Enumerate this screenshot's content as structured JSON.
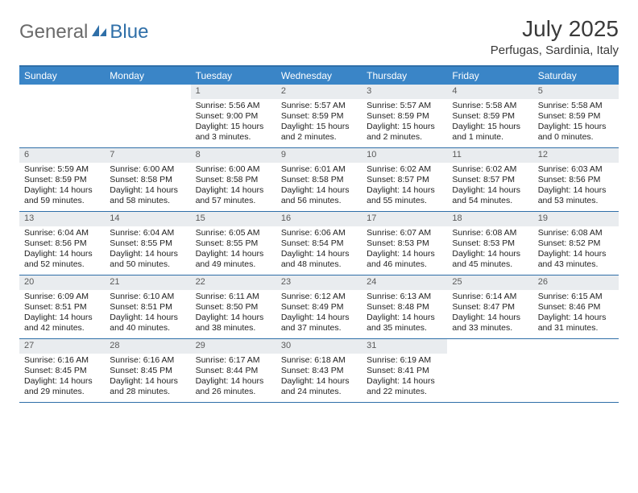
{
  "brand": {
    "part1": "General",
    "part2": "Blue"
  },
  "title": "July 2025",
  "location": "Perfugas, Sardinia, Italy",
  "colors": {
    "header_bg": "#3a85c7",
    "border": "#2f6fa8",
    "daynum_bg": "#e9ecef",
    "text": "#222222",
    "logo_gray": "#6a6a6a",
    "logo_blue": "#2f6fa8"
  },
  "day_names": [
    "Sunday",
    "Monday",
    "Tuesday",
    "Wednesday",
    "Thursday",
    "Friday",
    "Saturday"
  ],
  "weeks": [
    [
      null,
      null,
      {
        "d": "1",
        "sunrise": "5:56 AM",
        "sunset": "9:00 PM",
        "daylight": "15 hours and 3 minutes."
      },
      {
        "d": "2",
        "sunrise": "5:57 AM",
        "sunset": "8:59 PM",
        "daylight": "15 hours and 2 minutes."
      },
      {
        "d": "3",
        "sunrise": "5:57 AM",
        "sunset": "8:59 PM",
        "daylight": "15 hours and 2 minutes."
      },
      {
        "d": "4",
        "sunrise": "5:58 AM",
        "sunset": "8:59 PM",
        "daylight": "15 hours and 1 minute."
      },
      {
        "d": "5",
        "sunrise": "5:58 AM",
        "sunset": "8:59 PM",
        "daylight": "15 hours and 0 minutes."
      }
    ],
    [
      {
        "d": "6",
        "sunrise": "5:59 AM",
        "sunset": "8:59 PM",
        "daylight": "14 hours and 59 minutes."
      },
      {
        "d": "7",
        "sunrise": "6:00 AM",
        "sunset": "8:58 PM",
        "daylight": "14 hours and 58 minutes."
      },
      {
        "d": "8",
        "sunrise": "6:00 AM",
        "sunset": "8:58 PM",
        "daylight": "14 hours and 57 minutes."
      },
      {
        "d": "9",
        "sunrise": "6:01 AM",
        "sunset": "8:58 PM",
        "daylight": "14 hours and 56 minutes."
      },
      {
        "d": "10",
        "sunrise": "6:02 AM",
        "sunset": "8:57 PM",
        "daylight": "14 hours and 55 minutes."
      },
      {
        "d": "11",
        "sunrise": "6:02 AM",
        "sunset": "8:57 PM",
        "daylight": "14 hours and 54 minutes."
      },
      {
        "d": "12",
        "sunrise": "6:03 AM",
        "sunset": "8:56 PM",
        "daylight": "14 hours and 53 minutes."
      }
    ],
    [
      {
        "d": "13",
        "sunrise": "6:04 AM",
        "sunset": "8:56 PM",
        "daylight": "14 hours and 52 minutes."
      },
      {
        "d": "14",
        "sunrise": "6:04 AM",
        "sunset": "8:55 PM",
        "daylight": "14 hours and 50 minutes."
      },
      {
        "d": "15",
        "sunrise": "6:05 AM",
        "sunset": "8:55 PM",
        "daylight": "14 hours and 49 minutes."
      },
      {
        "d": "16",
        "sunrise": "6:06 AM",
        "sunset": "8:54 PM",
        "daylight": "14 hours and 48 minutes."
      },
      {
        "d": "17",
        "sunrise": "6:07 AM",
        "sunset": "8:53 PM",
        "daylight": "14 hours and 46 minutes."
      },
      {
        "d": "18",
        "sunrise": "6:08 AM",
        "sunset": "8:53 PM",
        "daylight": "14 hours and 45 minutes."
      },
      {
        "d": "19",
        "sunrise": "6:08 AM",
        "sunset": "8:52 PM",
        "daylight": "14 hours and 43 minutes."
      }
    ],
    [
      {
        "d": "20",
        "sunrise": "6:09 AM",
        "sunset": "8:51 PM",
        "daylight": "14 hours and 42 minutes."
      },
      {
        "d": "21",
        "sunrise": "6:10 AM",
        "sunset": "8:51 PM",
        "daylight": "14 hours and 40 minutes."
      },
      {
        "d": "22",
        "sunrise": "6:11 AM",
        "sunset": "8:50 PM",
        "daylight": "14 hours and 38 minutes."
      },
      {
        "d": "23",
        "sunrise": "6:12 AM",
        "sunset": "8:49 PM",
        "daylight": "14 hours and 37 minutes."
      },
      {
        "d": "24",
        "sunrise": "6:13 AM",
        "sunset": "8:48 PM",
        "daylight": "14 hours and 35 minutes."
      },
      {
        "d": "25",
        "sunrise": "6:14 AM",
        "sunset": "8:47 PM",
        "daylight": "14 hours and 33 minutes."
      },
      {
        "d": "26",
        "sunrise": "6:15 AM",
        "sunset": "8:46 PM",
        "daylight": "14 hours and 31 minutes."
      }
    ],
    [
      {
        "d": "27",
        "sunrise": "6:16 AM",
        "sunset": "8:45 PM",
        "daylight": "14 hours and 29 minutes."
      },
      {
        "d": "28",
        "sunrise": "6:16 AM",
        "sunset": "8:45 PM",
        "daylight": "14 hours and 28 minutes."
      },
      {
        "d": "29",
        "sunrise": "6:17 AM",
        "sunset": "8:44 PM",
        "daylight": "14 hours and 26 minutes."
      },
      {
        "d": "30",
        "sunrise": "6:18 AM",
        "sunset": "8:43 PM",
        "daylight": "14 hours and 24 minutes."
      },
      {
        "d": "31",
        "sunrise": "6:19 AM",
        "sunset": "8:41 PM",
        "daylight": "14 hours and 22 minutes."
      },
      null,
      null
    ]
  ],
  "labels": {
    "sunrise": "Sunrise:",
    "sunset": "Sunset:",
    "daylight": "Daylight:"
  }
}
